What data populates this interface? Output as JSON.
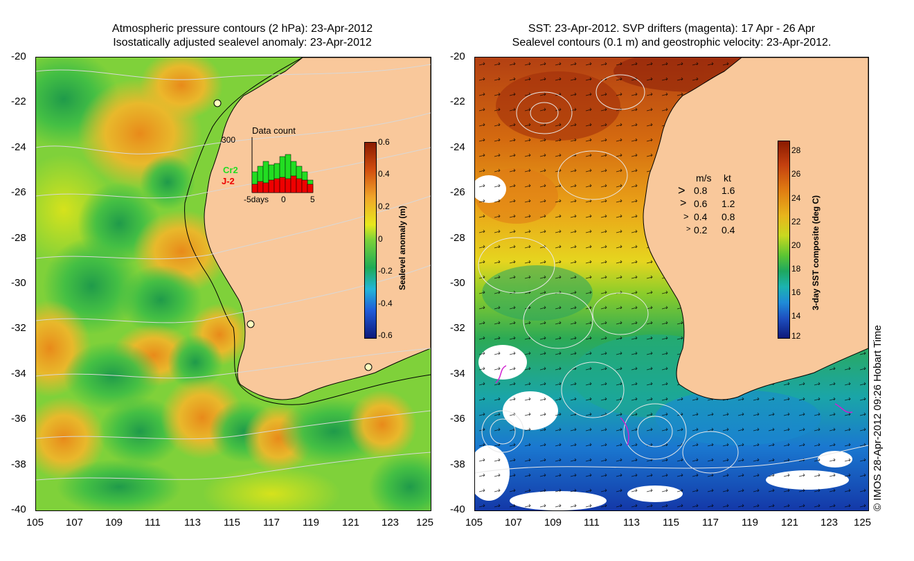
{
  "left_panel": {
    "title_line1": "Atmospheric pressure contours (2 hPa): 23-Apr-2012",
    "title_line2": "Isostatically adjusted sealevel anomaly: 23-Apr-2012",
    "colorbar": {
      "label": "Sealevel anomaly (m)",
      "ticks": [
        "0.6",
        "0.4",
        "0.2",
        "0",
        "-0.2",
        "-0.4",
        "-0.6"
      ]
    },
    "inset": {
      "title": "Data count",
      "y_max": "300",
      "series": [
        {
          "name": "Cr2",
          "color": "#22dd22"
        },
        {
          "name": "J-2",
          "color": "#ee0000"
        }
      ],
      "x_ticks": [
        "-5days",
        "0",
        "5"
      ]
    },
    "colors": {
      "ocean_mid": "#6ccf3a",
      "land": "#f9c89b"
    }
  },
  "right_panel": {
    "title_line1": "SST: 23-Apr-2012. SVP drifters (magenta): 17 Apr - 26 Apr",
    "title_line2": "Sealevel contours (0.1 m) and geostrophic velocity: 23-Apr-2012.",
    "colorbar": {
      "label": "3-day SST composite (deg C)",
      "ticks": [
        "28",
        "26",
        "24",
        "22",
        "20",
        "18",
        "16",
        "14",
        "12"
      ]
    },
    "velocity_legend": {
      "header_ms": "m/s",
      "header_kt": "kt",
      "rows": [
        {
          "ms": "0.8",
          "kt": "1.6"
        },
        {
          "ms": "0.6",
          "kt": "1.2"
        },
        {
          "ms": "0.4",
          "kt": "0.8"
        },
        {
          "ms": "0.2",
          "kt": "0.4"
        }
      ]
    },
    "credit": "© IMOS 28-Apr-2012 09:26 Hobart Time"
  },
  "axes": {
    "lat_ticks": [
      "-20",
      "-22",
      "-24",
      "-26",
      "-28",
      "-30",
      "-32",
      "-34",
      "-36",
      "-38",
      "-40"
    ],
    "lon_ticks": [
      "105",
      "107",
      "109",
      "111",
      "113",
      "115",
      "117",
      "119",
      "121",
      "123",
      "125"
    ]
  }
}
